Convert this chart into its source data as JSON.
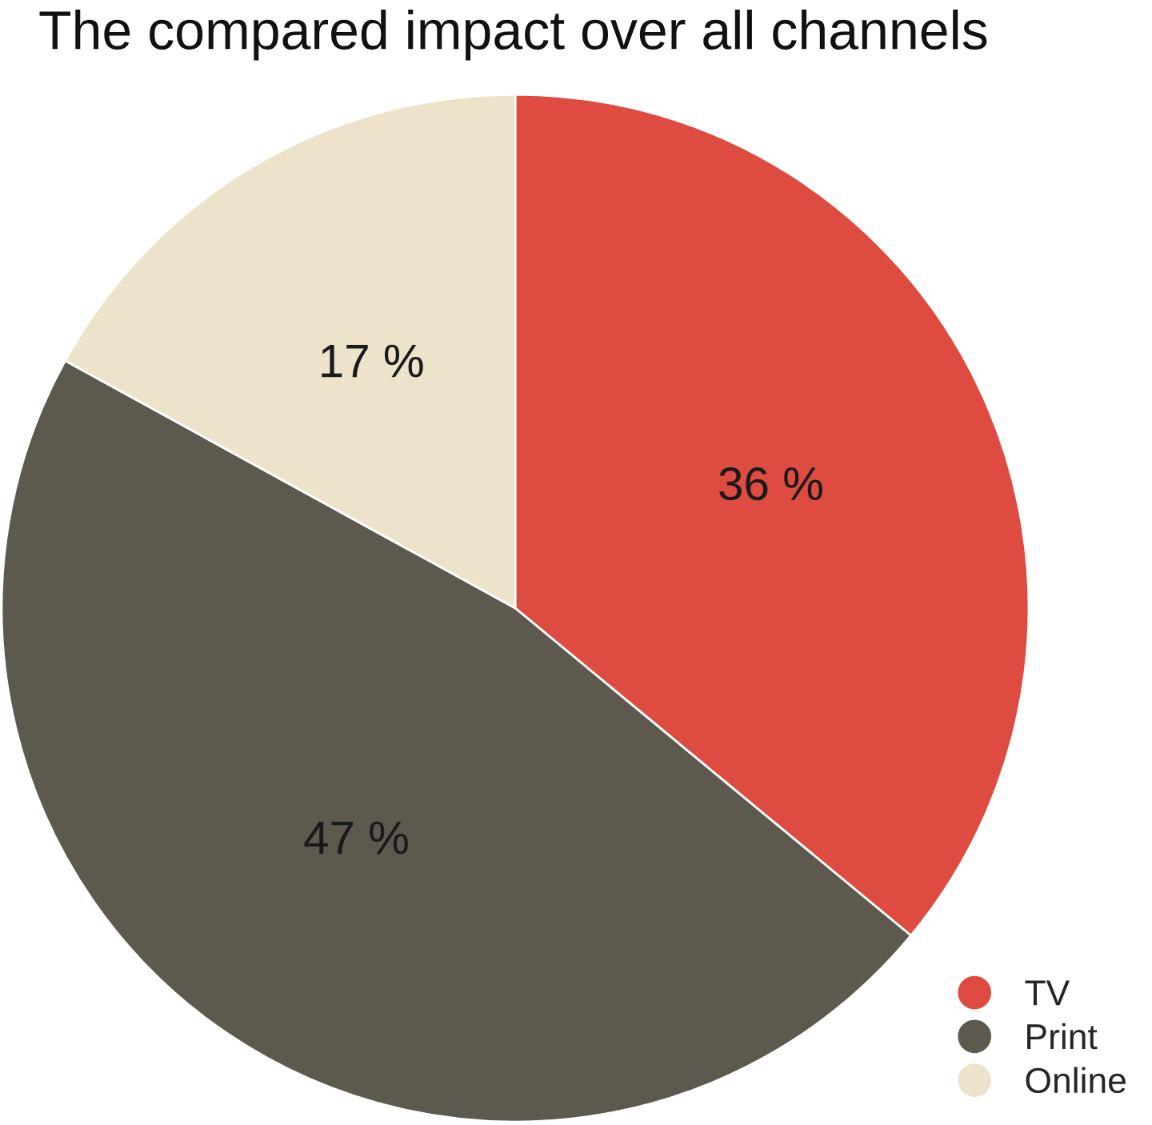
{
  "chart_data": {
    "type": "pie",
    "title": "The compared impact over all channels",
    "categories": [
      "TV",
      "Print",
      "Online"
    ],
    "values": [
      36,
      47,
      17
    ],
    "colors": [
      "#de4b41",
      "#5d594f",
      "#ede3ca"
    ],
    "value_labels": [
      "36 %",
      "47 %",
      "17 %"
    ],
    "legend": "bottom right"
  }
}
